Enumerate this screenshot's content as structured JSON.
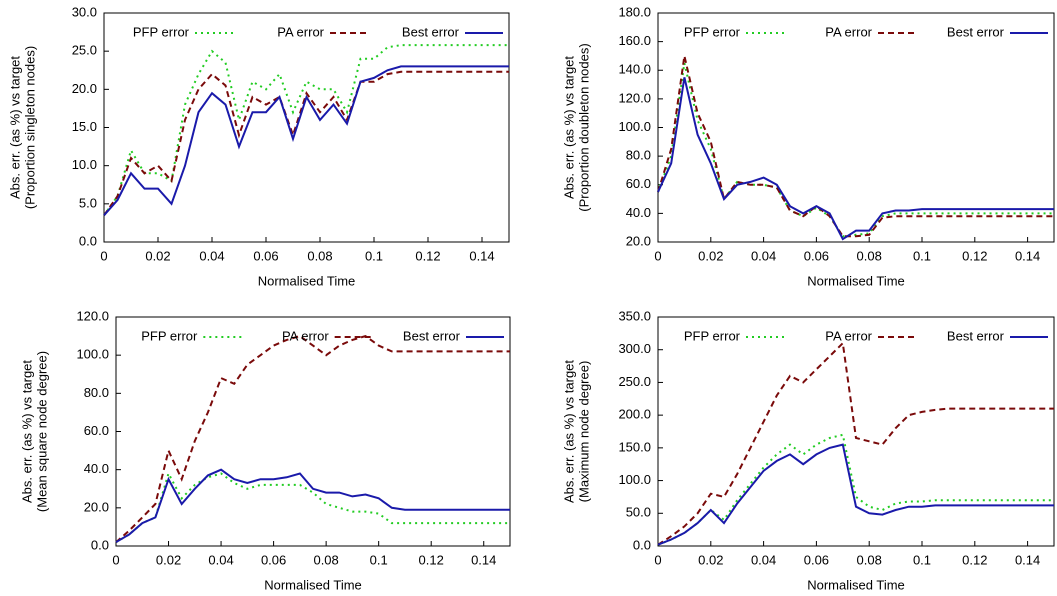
{
  "chart_data": [
    {
      "type": "line",
      "xlabel": "Normalised Time",
      "ylabel": [
        "Abs. err. (as %) vs target",
        "(Proportion singleton nodes)"
      ],
      "x": [
        0,
        0.005,
        0.01,
        0.015,
        0.02,
        0.025,
        0.03,
        0.035,
        0.04,
        0.045,
        0.05,
        0.055,
        0.06,
        0.065,
        0.07,
        0.075,
        0.08,
        0.085,
        0.09,
        0.095,
        0.1,
        0.105,
        0.11,
        0.12,
        0.13,
        0.14,
        0.15
      ],
      "xlim": [
        0,
        0.15
      ],
      "xticks": [
        0,
        0.02,
        0.04,
        0.06,
        0.08,
        0.1,
        0.12,
        0.14
      ],
      "ylim": [
        0,
        30
      ],
      "yticks": [
        {
          "value": 0,
          "label": "0.0"
        },
        {
          "value": 5,
          "label": "5.0"
        },
        {
          "value": 10,
          "label": "10.0"
        },
        {
          "value": 15,
          "label": "15.0"
        },
        {
          "value": 20,
          "label": "20.0"
        },
        {
          "value": 25,
          "label": "25.0"
        },
        {
          "value": 30,
          "label": "30.0"
        }
      ],
      "series": [
        {
          "name": "PFP error",
          "color": "#22cc22",
          "style": "dotted",
          "values": [
            3.5,
            6,
            12,
            9,
            9,
            8,
            18,
            22,
            25,
            23.5,
            16,
            21,
            20,
            22,
            17,
            21,
            20,
            20,
            17,
            24,
            24,
            25.5,
            25.8,
            25.8,
            25.8,
            25.8,
            25.8
          ]
        },
        {
          "name": "PA error",
          "color": "#7a0a0a",
          "style": "dashed",
          "values": [
            3.5,
            6,
            11,
            9,
            10,
            8,
            16,
            20,
            22,
            20.5,
            14,
            19,
            18,
            19,
            14,
            19.5,
            17,
            19,
            16,
            21,
            21,
            22,
            22.3,
            22.3,
            22.3,
            22.3,
            22.3
          ]
        },
        {
          "name": "Best error",
          "color": "#1a1aaa",
          "style": "solid",
          "values": [
            3.5,
            5.5,
            9,
            7,
            7,
            5,
            10,
            17,
            19.5,
            18,
            12.5,
            17,
            17,
            19,
            13.5,
            19,
            16,
            18,
            15.5,
            21,
            21.5,
            22.5,
            23,
            23,
            23,
            23,
            23
          ]
        }
      ]
    },
    {
      "type": "line",
      "xlabel": "Normalised Time",
      "ylabel": [
        "Abs. err. (as %) vs target",
        "(Proportion doubleton nodes)"
      ],
      "x": [
        0,
        0.005,
        0.01,
        0.015,
        0.02,
        0.025,
        0.03,
        0.035,
        0.04,
        0.045,
        0.05,
        0.055,
        0.06,
        0.065,
        0.07,
        0.075,
        0.08,
        0.085,
        0.09,
        0.095,
        0.1,
        0.105,
        0.11,
        0.12,
        0.13,
        0.14,
        0.15
      ],
      "xlim": [
        0,
        0.15
      ],
      "xticks": [
        0,
        0.02,
        0.04,
        0.06,
        0.08,
        0.1,
        0.12,
        0.14
      ],
      "ylim": [
        20,
        180
      ],
      "yticks": [
        {
          "value": 20,
          "label": "20.0"
        },
        {
          "value": 40,
          "label": "40.0"
        },
        {
          "value": 60,
          "label": "60.0"
        },
        {
          "value": 80,
          "label": "80.0"
        },
        {
          "value": 100,
          "label": "100.0"
        },
        {
          "value": 120,
          "label": "120.0"
        },
        {
          "value": 140,
          "label": "140.0"
        },
        {
          "value": 160,
          "label": "160.0"
        },
        {
          "value": 180,
          "label": "180.0"
        }
      ],
      "series": [
        {
          "name": "PFP error",
          "color": "#22cc22",
          "style": "dotted",
          "values": [
            55,
            80,
            145,
            105,
            85,
            50,
            62,
            60,
            60,
            58,
            42,
            38,
            44,
            38,
            24,
            25,
            26,
            38,
            40,
            40,
            40,
            40,
            40,
            40,
            40,
            40,
            40
          ]
        },
        {
          "name": "PA error",
          "color": "#7a0a0a",
          "style": "dashed",
          "values": [
            55,
            85,
            150,
            110,
            90,
            50,
            62,
            60,
            60,
            58,
            42,
            38,
            45,
            38,
            24,
            24,
            25,
            37,
            38,
            38,
            38,
            38,
            38,
            38,
            38,
            38,
            38
          ]
        },
        {
          "name": "Best error",
          "color": "#1a1aaa",
          "style": "solid",
          "values": [
            55,
            75,
            135,
            95,
            75,
            50,
            60,
            62,
            65,
            60,
            45,
            40,
            45,
            40,
            22,
            28,
            28,
            40,
            42,
            42,
            43,
            43,
            43,
            43,
            43,
            43,
            43
          ]
        }
      ]
    },
    {
      "type": "line",
      "xlabel": "Normalised Time",
      "ylabel": [
        "Abs. err. (as %) vs target",
        "(Mean square node degree)"
      ],
      "x": [
        0,
        0.005,
        0.01,
        0.015,
        0.02,
        0.025,
        0.03,
        0.035,
        0.04,
        0.045,
        0.05,
        0.055,
        0.06,
        0.065,
        0.07,
        0.075,
        0.08,
        0.085,
        0.09,
        0.095,
        0.1,
        0.105,
        0.11,
        0.12,
        0.13,
        0.14,
        0.15
      ],
      "xlim": [
        0,
        0.15
      ],
      "xticks": [
        0,
        0.02,
        0.04,
        0.06,
        0.08,
        0.1,
        0.12,
        0.14
      ],
      "ylim": [
        0,
        120
      ],
      "yticks": [
        {
          "value": 0,
          "label": "0.0"
        },
        {
          "value": 20,
          "label": "20.0"
        },
        {
          "value": 40,
          "label": "40.0"
        },
        {
          "value": 60,
          "label": "60.0"
        },
        {
          "value": 80,
          "label": "80.0"
        },
        {
          "value": 100,
          "label": "100.0"
        },
        {
          "value": 120,
          "label": "120.0"
        }
      ],
      "series": [
        {
          "name": "PFP error",
          "color": "#22cc22",
          "style": "dotted",
          "values": [
            2,
            6,
            12,
            15,
            38,
            25,
            32,
            36,
            38,
            33,
            30,
            32,
            32,
            32,
            32,
            28,
            22,
            20,
            18,
            18,
            17,
            12,
            12,
            12,
            12,
            12,
            12
          ]
        },
        {
          "name": "PA error",
          "color": "#7a0a0a",
          "style": "dashed",
          "values": [
            2,
            8,
            15,
            22,
            50,
            35,
            55,
            70,
            88,
            85,
            95,
            100,
            105,
            108,
            110,
            105,
            100,
            105,
            108,
            110,
            105,
            102,
            102,
            102,
            102,
            102,
            102
          ]
        },
        {
          "name": "Best error",
          "color": "#1a1aaa",
          "style": "solid",
          "values": [
            2,
            6,
            12,
            15,
            35,
            22,
            30,
            37,
            40,
            35,
            33,
            35,
            35,
            36,
            38,
            30,
            28,
            28,
            26,
            27,
            25,
            20,
            19,
            19,
            19,
            19,
            19
          ]
        }
      ]
    },
    {
      "type": "line",
      "xlabel": "Normalised Time",
      "ylabel": [
        "Abs. err. (as %) vs target",
        "(Maximum node degree)"
      ],
      "x": [
        0,
        0.005,
        0.01,
        0.015,
        0.02,
        0.025,
        0.03,
        0.035,
        0.04,
        0.045,
        0.05,
        0.055,
        0.06,
        0.065,
        0.07,
        0.075,
        0.08,
        0.085,
        0.09,
        0.095,
        0.1,
        0.105,
        0.11,
        0.12,
        0.13,
        0.14,
        0.15
      ],
      "xlim": [
        0,
        0.15
      ],
      "xticks": [
        0,
        0.02,
        0.04,
        0.06,
        0.08,
        0.1,
        0.12,
        0.14
      ],
      "ylim": [
        0,
        350
      ],
      "yticks": [
        {
          "value": 0,
          "label": "0.0"
        },
        {
          "value": 50,
          "label": "50.0"
        },
        {
          "value": 100,
          "label": "100.0"
        },
        {
          "value": 150,
          "label": "150.0"
        },
        {
          "value": 200,
          "label": "200.0"
        },
        {
          "value": 250,
          "label": "250.0"
        },
        {
          "value": 300,
          "label": "300.0"
        },
        {
          "value": 350,
          "label": "350.0"
        }
      ],
      "series": [
        {
          "name": "PFP error",
          "color": "#22cc22",
          "style": "dotted",
          "values": [
            2,
            10,
            20,
            35,
            55,
            40,
            70,
            95,
            120,
            140,
            155,
            140,
            155,
            165,
            170,
            75,
            60,
            55,
            65,
            68,
            68,
            70,
            70,
            70,
            70,
            70,
            70
          ]
        },
        {
          "name": "PA error",
          "color": "#7a0a0a",
          "style": "dashed",
          "values": [
            2,
            15,
            30,
            50,
            80,
            75,
            110,
            150,
            190,
            230,
            260,
            250,
            270,
            290,
            310,
            165,
            160,
            155,
            180,
            200,
            205,
            208,
            210,
            210,
            210,
            210,
            210
          ]
        },
        {
          "name": "Best error",
          "color": "#1a1aaa",
          "style": "solid",
          "values": [
            2,
            10,
            20,
            35,
            55,
            35,
            65,
            90,
            115,
            130,
            140,
            125,
            140,
            150,
            155,
            60,
            50,
            48,
            55,
            60,
            60,
            62,
            62,
            62,
            62,
            62,
            62
          ]
        }
      ]
    }
  ]
}
